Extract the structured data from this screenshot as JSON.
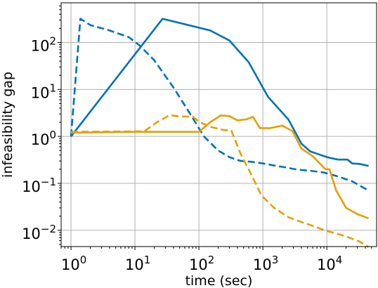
{
  "chart_data": {
    "type": "line",
    "title": "",
    "xlabel": "time (sec)",
    "ylabel": "infeasibility gap",
    "xscale": "log",
    "yscale": "log",
    "xlim": [
      0.7,
      60000
    ],
    "ylim": [
      0.0045,
      700
    ],
    "grid": true,
    "legend": "none",
    "x_ticks": [
      {
        "base": "10",
        "exp": "0"
      },
      {
        "base": "10",
        "exp": "1"
      },
      {
        "base": "10",
        "exp": "2"
      },
      {
        "base": "10",
        "exp": "3"
      },
      {
        "base": "10",
        "exp": "4"
      }
    ],
    "y_ticks": [
      {
        "base": "10",
        "exp": "−2"
      },
      {
        "base": "10",
        "exp": "−1"
      },
      {
        "base": "10",
        "exp": "0"
      },
      {
        "base": "10",
        "exp": "1"
      },
      {
        "base": "10",
        "exp": "2"
      }
    ],
    "series": [
      {
        "color": "#0072b2",
        "style": "solid",
        "points": [
          [
            1,
            1.0
          ],
          [
            27,
            320
          ],
          [
            150,
            180
          ],
          [
            300,
            110
          ],
          [
            600,
            38
          ],
          [
            1200,
            7
          ],
          [
            2500,
            2.3
          ],
          [
            4000,
            0.7
          ],
          [
            5500,
            0.48
          ],
          [
            8000,
            0.4
          ],
          [
            11000,
            0.35
          ],
          [
            15000,
            0.32
          ],
          [
            21000,
            0.32
          ],
          [
            25000,
            0.265
          ],
          [
            32000,
            0.26
          ],
          [
            45000,
            0.235
          ]
        ]
      },
      {
        "color": "#0072b2",
        "style": "dashed",
        "points": [
          [
            1,
            1.0
          ],
          [
            1.4,
            320
          ],
          [
            2,
            235
          ],
          [
            4,
            180
          ],
          [
            8,
            130
          ],
          [
            12,
            85
          ],
          [
            20,
            42
          ],
          [
            40,
            11
          ],
          [
            70,
            3.3
          ],
          [
            120,
            1.0
          ],
          [
            200,
            0.5
          ],
          [
            300,
            0.36
          ],
          [
            450,
            0.3
          ],
          [
            700,
            0.285
          ],
          [
            1000,
            0.265
          ],
          [
            1500,
            0.24
          ],
          [
            2200,
            0.22
          ],
          [
            3500,
            0.195
          ],
          [
            5500,
            0.185
          ],
          [
            9000,
            0.17
          ],
          [
            15000,
            0.14
          ],
          [
            25000,
            0.11
          ],
          [
            45000,
            0.07
          ]
        ]
      },
      {
        "color": "#e69f00",
        "style": "solid",
        "points": [
          [
            1,
            1.2
          ],
          [
            10,
            1.25
          ],
          [
            100,
            1.25
          ],
          [
            150,
            2.0
          ],
          [
            220,
            2.8
          ],
          [
            300,
            2.7
          ],
          [
            400,
            2.2
          ],
          [
            550,
            2.3
          ],
          [
            700,
            2.6
          ],
          [
            900,
            1.5
          ],
          [
            1300,
            1.5
          ],
          [
            2000,
            1.7
          ],
          [
            2900,
            1.3
          ],
          [
            4000,
            0.55
          ],
          [
            6000,
            0.38
          ],
          [
            9500,
            0.2
          ],
          [
            11000,
            0.2
          ],
          [
            14000,
            0.07
          ],
          [
            20000,
            0.03
          ],
          [
            30000,
            0.022
          ],
          [
            45000,
            0.018
          ]
        ]
      },
      {
        "color": "#e69f00",
        "style": "dashed",
        "points": [
          [
            1,
            1.25
          ],
          [
            14,
            1.28
          ],
          [
            22,
            2.0
          ],
          [
            35,
            2.85
          ],
          [
            50,
            2.65
          ],
          [
            80,
            2.65
          ],
          [
            100,
            2.05
          ],
          [
            150,
            1.6
          ],
          [
            250,
            1.35
          ],
          [
            320,
            1.35
          ],
          [
            450,
            0.42
          ],
          [
            650,
            0.16
          ],
          [
            950,
            0.055
          ],
          [
            1500,
            0.03
          ],
          [
            2500,
            0.019
          ],
          [
            4000,
            0.015
          ],
          [
            6500,
            0.012
          ],
          [
            9500,
            0.0098
          ],
          [
            13000,
            0.0088
          ],
          [
            20000,
            0.0074
          ],
          [
            32000,
            0.0058
          ],
          [
            45000,
            0.0044
          ]
        ]
      }
    ]
  }
}
